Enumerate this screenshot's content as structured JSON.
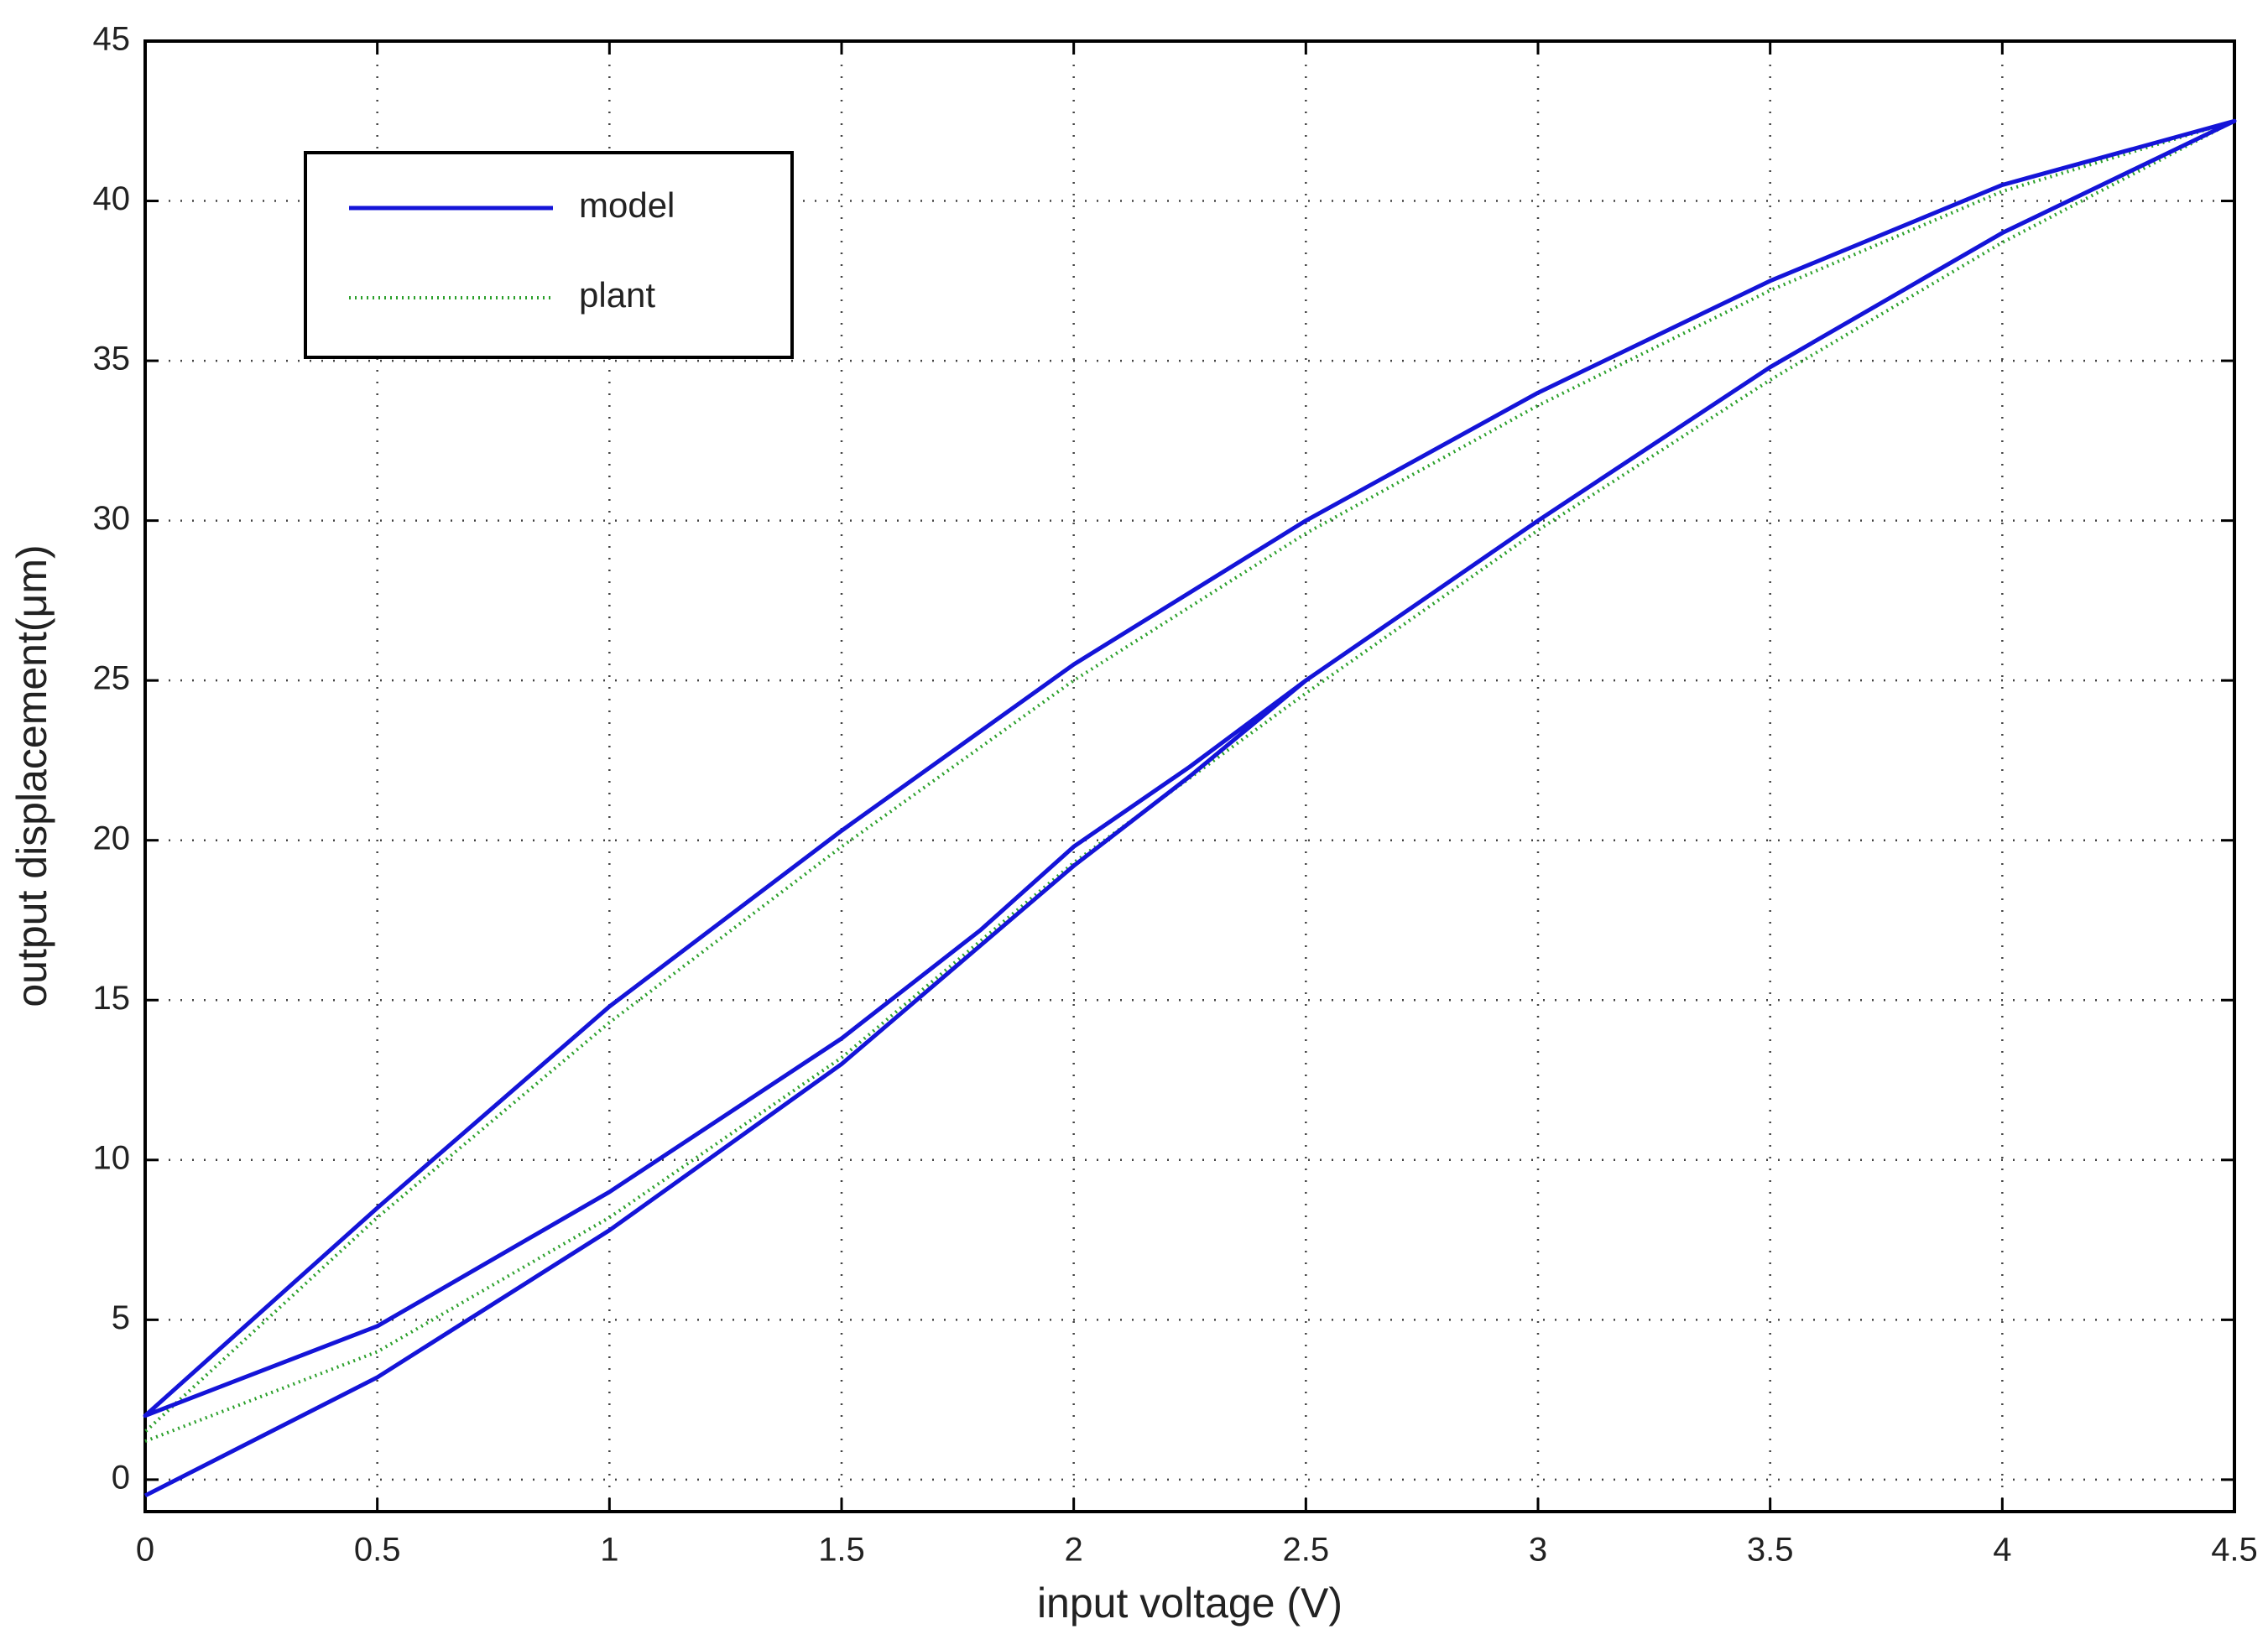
{
  "chart_data": {
    "type": "line",
    "xlabel": "input voltage (V)",
    "ylabel": "output displacement(μm)",
    "xlim": [
      0,
      4.5
    ],
    "ylim": [
      -1,
      45
    ],
    "xticks": [
      0,
      0.5,
      1,
      1.5,
      2,
      2.5,
      3,
      3.5,
      4,
      4.5
    ],
    "yticks": [
      0,
      5,
      10,
      15,
      20,
      25,
      30,
      35,
      40,
      45
    ],
    "grid": true,
    "legend": "upper left",
    "series": [
      {
        "name": "model",
        "color": "#1414d8",
        "style": "solid",
        "x": [
          0,
          0.5,
          1,
          1.5,
          2,
          2.25,
          2.5,
          3,
          3.5,
          4,
          4.5,
          4,
          3.5,
          3,
          2.5,
          2,
          1.5,
          1,
          0.5,
          0,
          0.5,
          1,
          1.5,
          1.8,
          2,
          2.25,
          2.5,
          3,
          3.5,
          4,
          4.5
        ],
        "values": [
          -0.5,
          3.2,
          7.8,
          13,
          19.2,
          22,
          25,
          30,
          34.8,
          39,
          42.5,
          40.5,
          37.5,
          34,
          30,
          25.5,
          20.3,
          14.8,
          8.5,
          2,
          4.8,
          9,
          13.8,
          17.2,
          19.8,
          22.3,
          25,
          30,
          34.8,
          39,
          42.5
        ]
      },
      {
        "name": "plant",
        "color": "#2ca02c",
        "style": "dotted",
        "x": [
          0,
          0.5,
          1,
          1.5,
          2,
          2.5,
          3,
          3.5,
          4,
          4.5,
          4,
          3.5,
          3,
          2.5,
          2,
          1.5,
          1,
          0.5,
          0
        ],
        "values": [
          1.2,
          4,
          8.2,
          13.2,
          19.3,
          24.6,
          29.7,
          34.4,
          38.7,
          42.5,
          40.3,
          37.2,
          33.6,
          29.6,
          25,
          19.8,
          14.3,
          8.2,
          1.5
        ]
      }
    ]
  }
}
